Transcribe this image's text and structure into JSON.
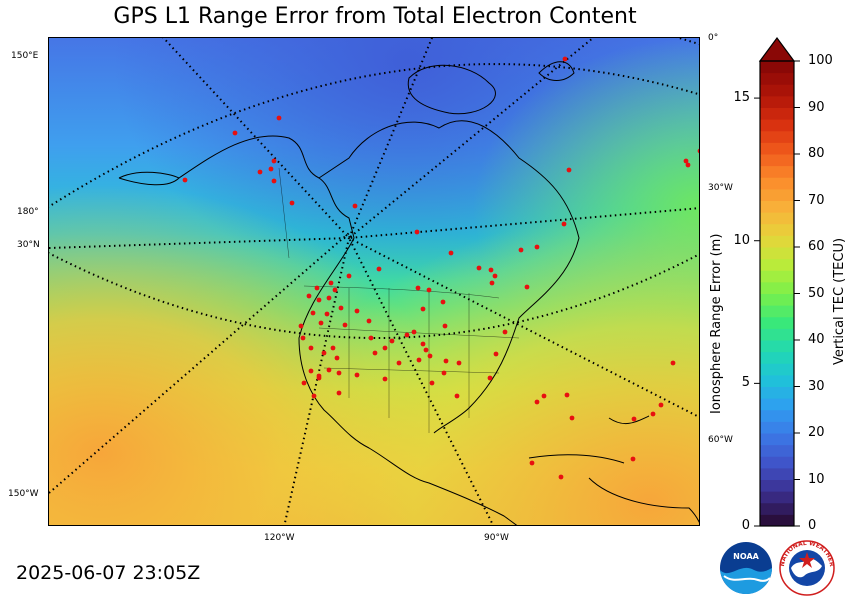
{
  "title": "GPS L1 Range Error from Total Electron Content",
  "timestamp": "2025-06-07 23:05Z",
  "map": {
    "meridian_labels_bottom": [
      "120°W",
      "90°W"
    ],
    "left_labels": [
      "150°E",
      "180°",
      "30°N",
      "150°W"
    ],
    "right_labels": [
      "0°",
      "30°W",
      "60°W"
    ]
  },
  "range_error_axis": {
    "title": "Ionosphere Range Error (m)",
    "ticks": [
      "15",
      "10",
      "5",
      "0"
    ],
    "tick_values": [
      15,
      10,
      5,
      0
    ]
  },
  "tec_colorbar": {
    "title": "Vertical TEC (TECU)",
    "ticks": [
      "100",
      "90",
      "80",
      "70",
      "60",
      "50",
      "40",
      "30",
      "20",
      "10",
      "0"
    ],
    "tick_values": [
      100,
      90,
      80,
      70,
      60,
      50,
      40,
      30,
      20,
      10,
      0
    ],
    "extend": "max",
    "stops": [
      "#2a0f3d",
      "#3b2f8f",
      "#3f53c8",
      "#3c78e6",
      "#2f9ef0",
      "#1fc3d8",
      "#22d9b1",
      "#3ae879",
      "#7af04a",
      "#b9ec3a",
      "#e6d43a",
      "#f8b23a",
      "#fb8c2c",
      "#f05a1c",
      "#d8300f",
      "#b01509",
      "#8a0806"
    ]
  },
  "logos": {
    "noaa": "NOAA",
    "nws": "NATIONAL WEATHER SERVICE"
  },
  "colors": {
    "station_marker": "#e81010",
    "ocean_low": "#4a74e0",
    "ocean_high": "#f6a83a"
  }
}
